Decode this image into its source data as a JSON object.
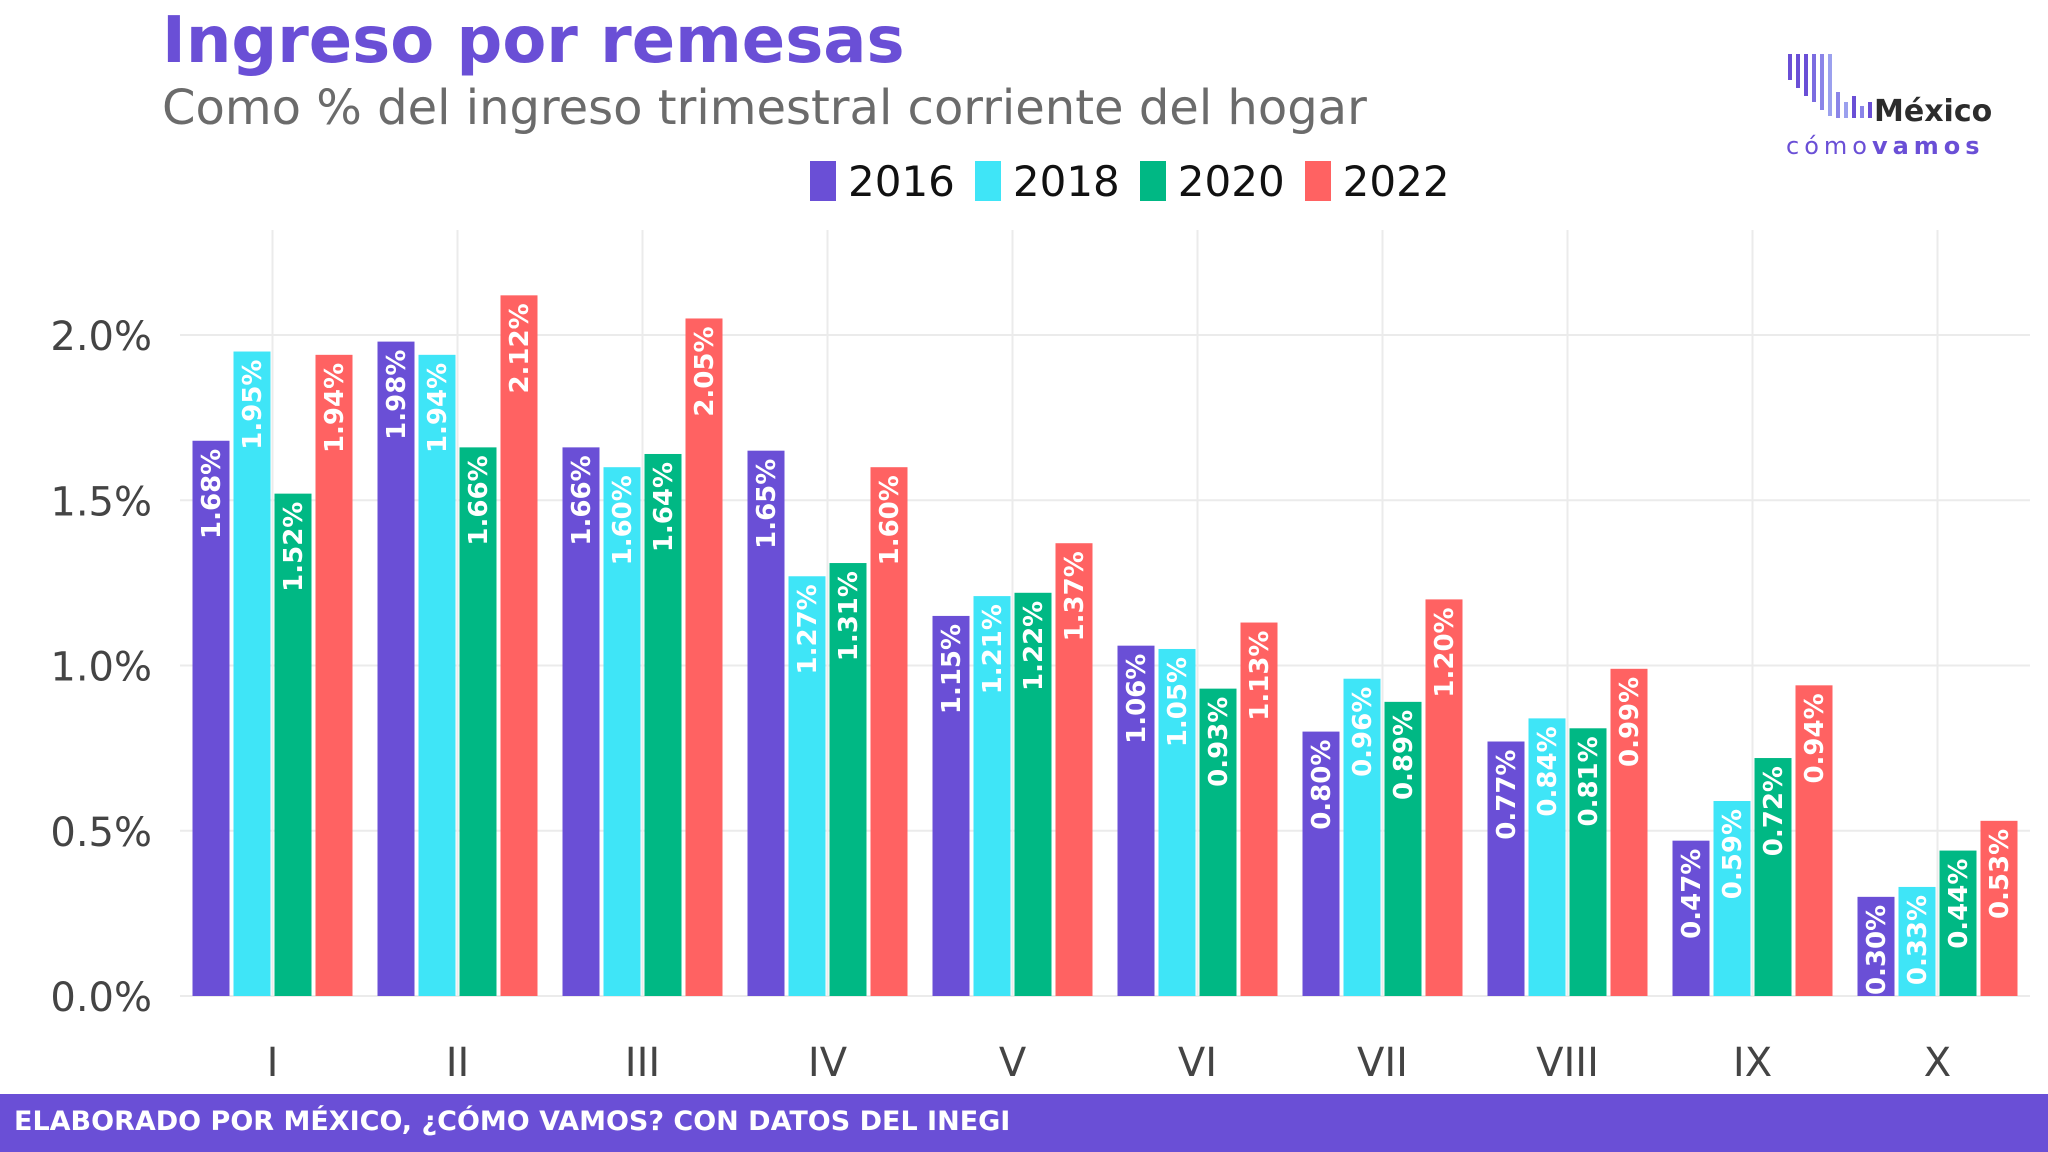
{
  "header": {
    "title": "Ingreso por remesas",
    "subtitle": "Como % del ingreso trimestral corriente del hogar"
  },
  "logo": {
    "name_top": "México",
    "name_bottom_light": "cómo",
    "name_bottom_bold": "vamos"
  },
  "footer": {
    "text": "ELABORADO POR MÉXICO, ¿CÓMO VAMOS? CON DATOS DEL INEGI"
  },
  "colors": {
    "brand": "#6A4FD6",
    "s2016": "#6A4FD6",
    "s2018": "#3FE5F7",
    "s2020": "#00B884",
    "s2022": "#FF6262"
  },
  "chart_data": {
    "type": "bar",
    "categories": [
      "I",
      "II",
      "III",
      "IV",
      "V",
      "VI",
      "VII",
      "VIII",
      "IX",
      "X"
    ],
    "series": [
      {
        "name": "2016",
        "color": "#6A4FD6",
        "values": [
          1.68,
          1.98,
          1.66,
          1.65,
          1.15,
          1.06,
          0.8,
          0.77,
          0.47,
          0.3
        ]
      },
      {
        "name": "2018",
        "color": "#3FE5F7",
        "values": [
          1.95,
          1.94,
          1.6,
          1.27,
          1.21,
          1.05,
          0.96,
          0.84,
          0.59,
          0.33
        ]
      },
      {
        "name": "2020",
        "color": "#00B884",
        "values": [
          1.52,
          1.66,
          1.64,
          1.31,
          1.22,
          0.93,
          0.89,
          0.81,
          0.72,
          0.44
        ]
      },
      {
        "name": "2022",
        "color": "#FF6262",
        "values": [
          1.94,
          2.12,
          2.05,
          1.6,
          1.37,
          1.13,
          1.2,
          0.99,
          0.94,
          0.53
        ]
      }
    ],
    "y_ticks": [
      "0.0%",
      "0.5%",
      "1.0%",
      "1.5%",
      "2.0%"
    ],
    "ylim": [
      0,
      2.3
    ],
    "grid": true,
    "legend_position": "top",
    "value_unit": "%"
  }
}
